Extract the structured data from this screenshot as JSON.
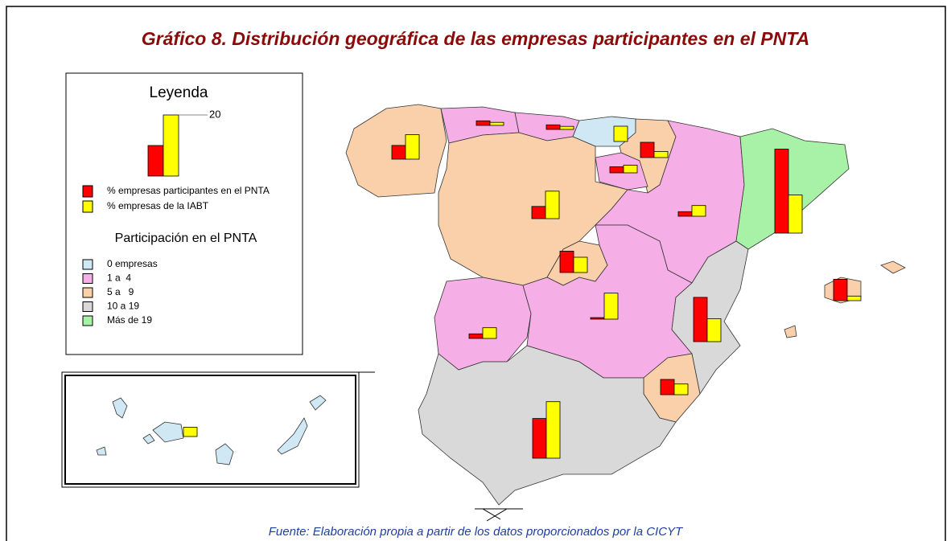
{
  "title": "Gráfico 8. Distribución geográfica de las empresas participantes en el PNTA",
  "source": "Fuente: Elaboración propia a partir de los datos proporcionados por la CICYT",
  "legend": {
    "title": "Leyenda",
    "sample_values": [
      10,
      20
    ],
    "scale_tick": 20,
    "series": [
      {
        "name": "% empresas participantes en el PNTA",
        "color": "#ff0000"
      },
      {
        "name": "% empresas de la IABT",
        "color": "#ffff00"
      }
    ],
    "classes_title": "Participación en el PNTA",
    "classes": [
      {
        "label": "0 empresas",
        "color": "#cfe8f3"
      },
      {
        "label": "1 a  4",
        "color": "#f5aee6"
      },
      {
        "label": "5 a   9",
        "color": "#f9d0aa"
      },
      {
        "label": "10 a 19",
        "color": "#d9d9d9"
      },
      {
        "label": "Más de 19",
        "color": "#a8f2a8"
      }
    ]
  },
  "regions": [
    {
      "class": 2,
      "values": [
        4.5,
        8
      ]
    },
    {
      "class": 1,
      "values": [
        1.5,
        1
      ]
    },
    {
      "class": 1,
      "values": [
        1.5,
        1
      ]
    },
    {
      "class": 0,
      "values": [
        0,
        5
      ]
    },
    {
      "class": 2,
      "values": [
        5,
        2
      ]
    },
    {
      "class": 1,
      "values": [
        2,
        2.5
      ]
    },
    {
      "class": 2,
      "values": [
        4,
        9
      ]
    },
    {
      "class": 1,
      "values": [
        1.5,
        3.5
      ]
    },
    {
      "class": 4,
      "values": [
        27.5,
        12.5
      ]
    },
    {
      "class": 2,
      "values": [
        7,
        5
      ]
    },
    {
      "class": 1,
      "values": [
        1.5,
        3.5
      ]
    },
    {
      "class": 1,
      "values": [
        0.5,
        8.5
      ]
    },
    {
      "class": 3,
      "values": [
        14.5,
        7.5
      ]
    },
    {
      "class": 2,
      "values": [
        7,
        1.5
      ]
    },
    {
      "class": 2,
      "values": [
        5,
        3.5
      ]
    },
    {
      "class": 3,
      "values": [
        13,
        18.5
      ]
    },
    {
      "class": 0,
      "values": [
        0,
        3
      ]
    }
  ]
}
